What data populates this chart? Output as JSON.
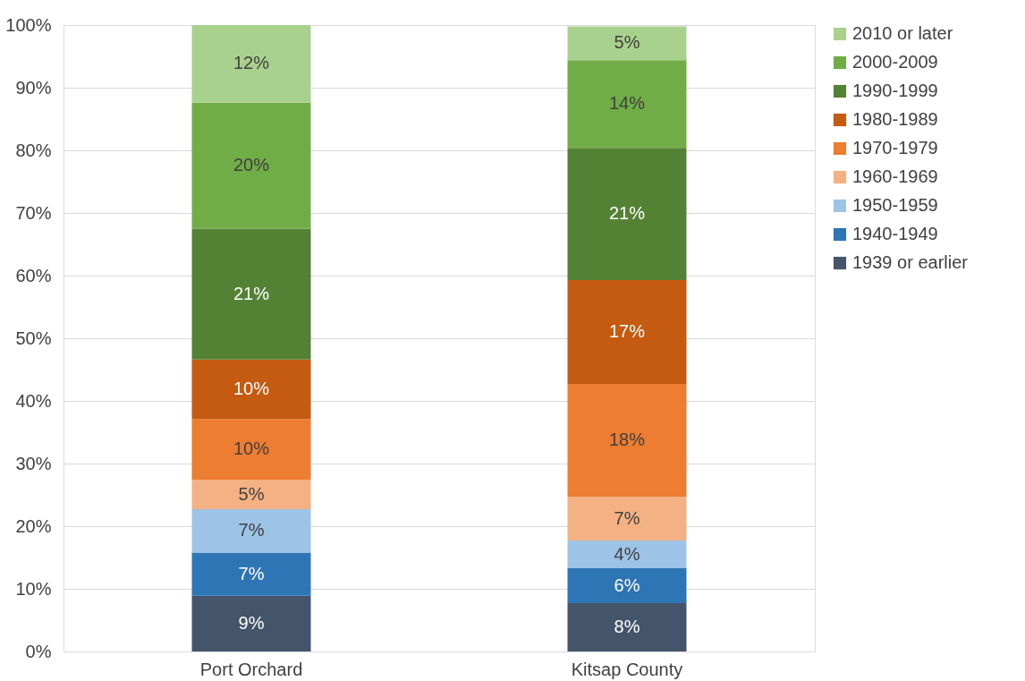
{
  "chart_data": {
    "type": "bar",
    "stacked": true,
    "categories": [
      "Port Orchard",
      "Kitsap County"
    ],
    "series": [
      {
        "name": "1939 or earlier",
        "color": "#44546a",
        "values": [
          8.9,
          7.7
        ],
        "value_labels": [
          "9%",
          "8%"
        ]
      },
      {
        "name": "1940-1949",
        "color": "#2e75b6",
        "values": [
          6.9,
          5.6
        ],
        "value_labels": [
          "7%",
          "6%"
        ]
      },
      {
        "name": "1950-1959",
        "color": "#9dc3e6",
        "values": [
          6.9,
          4.4
        ],
        "value_labels": [
          "7%",
          "4%"
        ]
      },
      {
        "name": "1960-1969",
        "color": "#f4b183",
        "values": [
          4.7,
          7.0
        ],
        "value_labels": [
          "5%",
          "7%"
        ]
      },
      {
        "name": "1970-1979",
        "color": "#ed7d31",
        "values": [
          9.7,
          18.0
        ],
        "value_labels": [
          "10%",
          "18%"
        ]
      },
      {
        "name": "1980-1989",
        "color": "#c55a11",
        "values": [
          9.5,
          16.6
        ],
        "value_labels": [
          "10%",
          "17%"
        ]
      },
      {
        "name": "1990-1999",
        "color": "#548235",
        "values": [
          20.9,
          21.1
        ],
        "value_labels": [
          "21%",
          "21%"
        ]
      },
      {
        "name": "2000-2009",
        "color": "#70ad47",
        "values": [
          20.1,
          14.0
        ],
        "value_labels": [
          "20%",
          "14%"
        ]
      },
      {
        "name": "2010 or later",
        "color": "#a9d18e",
        "values": [
          12.4,
          5.4
        ],
        "value_labels": [
          "12%",
          "5%"
        ]
      }
    ],
    "ylim": [
      0,
      100
    ],
    "yticks": [
      {
        "value": 0,
        "label": "0%"
      },
      {
        "value": 10,
        "label": "10%"
      },
      {
        "value": 20,
        "label": "20%"
      },
      {
        "value": 30,
        "label": "30%"
      },
      {
        "value": 40,
        "label": "40%"
      },
      {
        "value": 50,
        "label": "50%"
      },
      {
        "value": 60,
        "label": "60%"
      },
      {
        "value": 70,
        "label": "70%"
      },
      {
        "value": 80,
        "label": "80%"
      },
      {
        "value": 90,
        "label": "90%"
      },
      {
        "value": 100,
        "label": "100%"
      }
    ],
    "grid": "y",
    "legend": "right"
  }
}
